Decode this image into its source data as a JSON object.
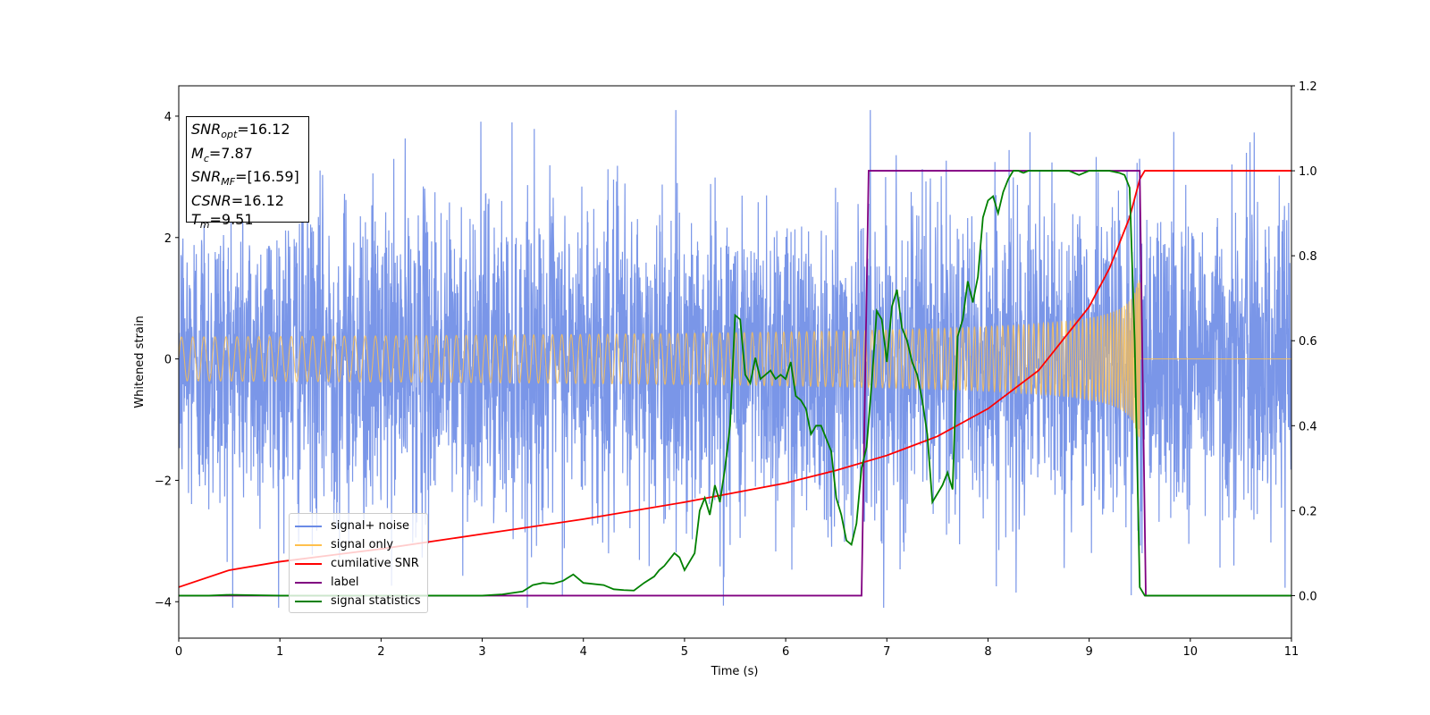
{
  "chart_data": {
    "type": "line",
    "xlabel": "Time (s)",
    "ylabel": "Whitened strain",
    "xlim": [
      0,
      11
    ],
    "ylim": [
      -4.6,
      4.5
    ],
    "ylim_right": [
      -0.1,
      1.2
    ],
    "xticks": [
      "0",
      "1",
      "2",
      "3",
      "4",
      "5",
      "6",
      "7",
      "8",
      "9",
      "10",
      "11"
    ],
    "yticks_left": [
      "−4",
      "−2",
      "0",
      "2",
      "4"
    ],
    "yticks_left_values": [
      -4,
      -2,
      0,
      2,
      4
    ],
    "yticks_right": [
      "0.0",
      "0.2",
      "0.4",
      "0.6",
      "0.8",
      "1.0",
      "1.2"
    ],
    "yticks_right_values": [
      0.0,
      0.2,
      0.4,
      0.6,
      0.8,
      1.0,
      1.2
    ],
    "grid": false,
    "legend_position": "lower-left",
    "series": [
      {
        "name": "signal+ noise",
        "color": "#6b8be6",
        "axis": "left",
        "kind": "noise",
        "envelope_typical": 1.3,
        "envelope_extreme": 4.1
      },
      {
        "name": "signal only",
        "color": "#ffc04d",
        "axis": "left",
        "kind": "chirp",
        "t_start": 0,
        "t_merge": 9.51,
        "amplitude_start": 0.07,
        "amplitude_merge": 1.3
      },
      {
        "name": "cumilative SNR",
        "color": "#ff0000",
        "axis": "right",
        "x": [
          0,
          0.5,
          1,
          2,
          3,
          4,
          5,
          6,
          6.5,
          7,
          7.5,
          8,
          8.5,
          9,
          9.2,
          9.4,
          9.5,
          9.55,
          11
        ],
        "y": [
          0.02,
          0.06,
          0.08,
          0.11,
          0.145,
          0.18,
          0.22,
          0.265,
          0.295,
          0.33,
          0.375,
          0.44,
          0.53,
          0.68,
          0.77,
          0.89,
          0.98,
          1.0,
          1.0
        ]
      },
      {
        "name": "label",
        "color": "#800080",
        "axis": "right",
        "x": [
          0,
          6.75,
          6.82,
          9.5,
          9.56,
          11
        ],
        "y": [
          0,
          0,
          1,
          1,
          0,
          0
        ]
      },
      {
        "name": "signal statistics",
        "color": "#008000",
        "axis": "right",
        "x": [
          0,
          0.3,
          0.5,
          1,
          2,
          2.5,
          3,
          3.2,
          3.4,
          3.5,
          3.6,
          3.7,
          3.8,
          3.9,
          4.0,
          4.2,
          4.3,
          4.4,
          4.5,
          4.6,
          4.7,
          4.75,
          4.8,
          4.9,
          4.95,
          5.0,
          5.1,
          5.15,
          5.2,
          5.25,
          5.3,
          5.35,
          5.4,
          5.45,
          5.5,
          5.55,
          5.6,
          5.65,
          5.7,
          5.75,
          5.8,
          5.85,
          5.9,
          5.95,
          6.0,
          6.05,
          6.1,
          6.15,
          6.2,
          6.25,
          6.3,
          6.35,
          6.4,
          6.45,
          6.5,
          6.55,
          6.6,
          6.65,
          6.7,
          6.75,
          6.8,
          6.85,
          6.9,
          6.95,
          7.0,
          7.05,
          7.1,
          7.15,
          7.2,
          7.25,
          7.3,
          7.35,
          7.4,
          7.45,
          7.5,
          7.55,
          7.6,
          7.65,
          7.7,
          7.75,
          7.8,
          7.85,
          7.9,
          7.95,
          8.0,
          8.05,
          8.1,
          8.15,
          8.2,
          8.25,
          8.3,
          8.35,
          8.4,
          8.5,
          8.6,
          8.7,
          8.8,
          8.9,
          9.0,
          9.1,
          9.2,
          9.3,
          9.35,
          9.4,
          9.45,
          9.5,
          9.55,
          9.6,
          10,
          11
        ],
        "y": [
          0.0,
          0.0,
          0.002,
          0.0,
          0.0,
          0.0,
          0.0,
          0.003,
          0.01,
          0.025,
          0.03,
          0.028,
          0.035,
          0.05,
          0.03,
          0.025,
          0.015,
          0.013,
          0.012,
          0.03,
          0.045,
          0.06,
          0.07,
          0.1,
          0.09,
          0.06,
          0.1,
          0.2,
          0.23,
          0.19,
          0.26,
          0.22,
          0.3,
          0.4,
          0.66,
          0.65,
          0.52,
          0.5,
          0.56,
          0.51,
          0.52,
          0.53,
          0.51,
          0.52,
          0.51,
          0.55,
          0.47,
          0.46,
          0.44,
          0.38,
          0.4,
          0.4,
          0.37,
          0.34,
          0.23,
          0.19,
          0.13,
          0.12,
          0.17,
          0.3,
          0.35,
          0.5,
          0.67,
          0.65,
          0.55,
          0.68,
          0.72,
          0.63,
          0.6,
          0.55,
          0.52,
          0.46,
          0.38,
          0.22,
          0.24,
          0.26,
          0.29,
          0.25,
          0.61,
          0.65,
          0.74,
          0.69,
          0.75,
          0.89,
          0.93,
          0.94,
          0.9,
          0.95,
          0.98,
          1.0,
          1.0,
          0.995,
          1.0,
          1.0,
          1.0,
          1.0,
          1.0,
          0.99,
          1.0,
          1.0,
          1.0,
          0.995,
          0.99,
          0.96,
          0.6,
          0.02,
          0.0,
          0.0,
          0.0,
          0.0
        ]
      }
    ],
    "annotations": {
      "snr_opt": "=16.12",
      "mc": "=7.87",
      "snr_mf": "=[16.59]",
      "csnr": "=16.12",
      "tm": "=9.51"
    }
  },
  "legend": {
    "items": [
      {
        "label": "signal+ noise",
        "color": "#6b8be6"
      },
      {
        "label": "signal only",
        "color": "#ffc04d"
      },
      {
        "label": "cumilative SNR",
        "color": "#ff0000"
      },
      {
        "label": "label",
        "color": "#800080"
      },
      {
        "label": "signal statistics",
        "color": "#008000"
      }
    ]
  },
  "stats_box": {
    "snr_opt_sym": "SNR",
    "snr_opt_sub": "opt",
    "snr_opt_val": "=16.12",
    "mc_sym": "M",
    "mc_sub": "c",
    "mc_val": "=7.87",
    "snr_mf_sym": "SNR",
    "snr_mf_sub": "MF",
    "snr_mf_val": "=[16.59]",
    "csnr_sym": "CSNR",
    "csnr_val": "=16.12",
    "tm_sym": "T",
    "tm_sub": "m",
    "tm_val": "=9.51"
  }
}
